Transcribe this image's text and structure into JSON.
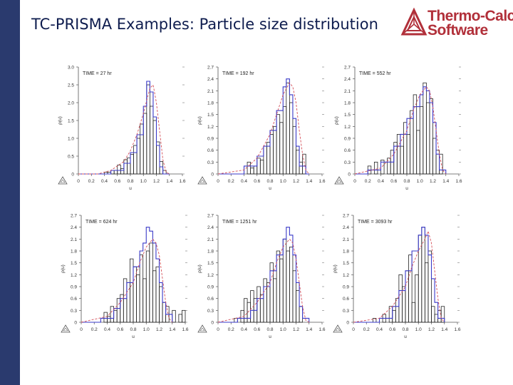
{
  "slide": {
    "title": "TC-PRISMA Examples: Particle size distribution"
  },
  "logo": {
    "line1": "Thermo-Calc",
    "line2": "Software",
    "color": "#b1303a"
  },
  "colors": {
    "sidebar": "#2a3a6e",
    "histogram": "#222222",
    "model_curve": "#3a3ac8",
    "fit_curve": "#d4505a"
  },
  "chart_data": [
    {
      "type": "bar",
      "annotation": "TIME = 27 hr",
      "xlabel": "u",
      "ylabel": "ρ(u)",
      "xlim": [
        0,
        1.6
      ],
      "ylim": [
        0,
        3.0
      ],
      "xticks": [
        "0",
        "0.2",
        "0.4",
        "0.6",
        "0.8",
        "1.0",
        "1.2",
        "1.4",
        "1.6"
      ],
      "yticks": [
        "0",
        "0.5",
        "1.0",
        "1.5",
        "2.0",
        "2.5",
        "3.0"
      ],
      "bin_width": 0.05,
      "bins": [
        [
          0.4,
          0.05
        ],
        [
          0.45,
          0.05
        ],
        [
          0.5,
          0.1
        ],
        [
          0.55,
          0.1
        ],
        [
          0.6,
          0.25
        ],
        [
          0.65,
          0.15
        ],
        [
          0.7,
          0.4
        ],
        [
          0.75,
          0.45
        ],
        [
          0.8,
          0.55
        ],
        [
          0.85,
          0.8
        ],
        [
          0.9,
          1.0
        ],
        [
          0.95,
          1.4
        ],
        [
          1.0,
          1.7
        ],
        [
          1.05,
          2.5
        ],
        [
          1.1,
          1.9
        ],
        [
          1.15,
          1.5
        ],
        [
          1.2,
          0.9
        ],
        [
          1.25,
          0.35
        ],
        [
          1.3,
          0.1
        ]
      ],
      "series": [
        {
          "style": "solid",
          "x": [
            0.0,
            0.3,
            0.5,
            0.7,
            0.8,
            0.9,
            1.0,
            1.05,
            1.1,
            1.15,
            1.2,
            1.25,
            1.3,
            1.4
          ],
          "y": [
            0.0,
            0.0,
            0.1,
            0.3,
            0.6,
            1.1,
            1.9,
            2.6,
            2.3,
            1.6,
            0.8,
            0.2,
            0.0,
            0.0
          ]
        },
        {
          "style": "dashed",
          "x": [
            0.0,
            0.3,
            0.5,
            0.7,
            0.8,
            0.9,
            1.0,
            1.1,
            1.15,
            1.2,
            1.25,
            1.3,
            1.35,
            1.4
          ],
          "y": [
            0.0,
            0.0,
            0.1,
            0.35,
            0.65,
            1.1,
            1.7,
            2.4,
            2.5,
            2.0,
            1.2,
            0.4,
            0.05,
            0.0
          ]
        }
      ]
    },
    {
      "type": "bar",
      "annotation": "TIME = 192 hr",
      "xlabel": "u",
      "ylabel": "ρ(u)",
      "xlim": [
        0,
        1.6
      ],
      "ylim": [
        0,
        2.7
      ],
      "xticks": [
        "0",
        "0.2",
        "0.4",
        "0.6",
        "0.8",
        "1.0",
        "1.2",
        "1.4",
        "1.6"
      ],
      "yticks": [
        "0",
        "0.3",
        "0.6",
        "0.9",
        "1.2",
        "1.5",
        "1.8",
        "2.1",
        "2.4",
        "2.7"
      ],
      "bin_width": 0.05,
      "bins": [
        [
          0.45,
          0.3
        ],
        [
          0.5,
          0.15
        ],
        [
          0.55,
          0.2
        ],
        [
          0.6,
          0.4
        ],
        [
          0.65,
          0.35
        ],
        [
          0.7,
          0.7
        ],
        [
          0.75,
          0.8
        ],
        [
          0.8,
          1.0
        ],
        [
          0.85,
          1.2
        ],
        [
          0.9,
          1.5
        ],
        [
          0.95,
          1.3
        ],
        [
          1.0,
          1.7
        ],
        [
          1.05,
          2.3
        ],
        [
          1.1,
          1.8
        ],
        [
          1.15,
          1.2
        ],
        [
          1.2,
          0.6
        ],
        [
          1.25,
          0.3
        ],
        [
          1.3,
          0.5
        ]
      ],
      "series": [
        {
          "style": "solid",
          "x": [
            0.0,
            0.2,
            0.4,
            0.6,
            0.7,
            0.8,
            0.9,
            1.0,
            1.05,
            1.1,
            1.15,
            1.2,
            1.25,
            1.35,
            1.4
          ],
          "y": [
            0.0,
            0.0,
            0.2,
            0.45,
            0.7,
            1.1,
            1.6,
            2.2,
            2.4,
            2.0,
            1.4,
            0.7,
            0.2,
            0.0,
            0.0
          ]
        },
        {
          "style": "dashed",
          "x": [
            0.0,
            0.4,
            0.6,
            0.8,
            0.9,
            1.0,
            1.1,
            1.15,
            1.2,
            1.25,
            1.3,
            1.35,
            1.4
          ],
          "y": [
            0.0,
            0.1,
            0.4,
            1.0,
            1.5,
            2.0,
            2.3,
            2.2,
            1.8,
            1.1,
            0.5,
            0.1,
            0.0
          ]
        }
      ]
    },
    {
      "type": "bar",
      "annotation": "TIME = 552 hr",
      "xlabel": "u",
      "ylabel": "ρ(u)",
      "xlim": [
        0,
        1.6
      ],
      "ylim": [
        0,
        2.7
      ],
      "xticks": [
        "0",
        "0.2",
        "0.4",
        "0.6",
        "0.8",
        "1.0",
        "1.2",
        "1.4",
        "1.6"
      ],
      "yticks": [
        "0",
        "0.3",
        "0.6",
        "0.9",
        "1.2",
        "1.5",
        "1.8",
        "2.1",
        "2.4",
        "2.7"
      ],
      "bin_width": 0.05,
      "bins": [
        [
          0.2,
          0.2
        ],
        [
          0.3,
          0.3
        ],
        [
          0.4,
          0.35
        ],
        [
          0.5,
          0.4
        ],
        [
          0.55,
          0.6
        ],
        [
          0.6,
          0.8
        ],
        [
          0.65,
          1.0
        ],
        [
          0.7,
          0.7
        ],
        [
          0.75,
          1.3
        ],
        [
          0.8,
          1.0
        ],
        [
          0.85,
          1.6
        ],
        [
          0.9,
          2.0
        ],
        [
          0.95,
          1.1
        ],
        [
          1.0,
          1.7
        ],
        [
          1.05,
          2.3
        ],
        [
          1.1,
          1.8
        ],
        [
          1.15,
          1.9
        ],
        [
          1.2,
          0.9
        ],
        [
          1.25,
          0.6
        ],
        [
          1.3,
          0.5
        ]
      ],
      "series": [
        {
          "style": "solid",
          "x": [
            0.0,
            0.2,
            0.4,
            0.6,
            0.7,
            0.8,
            0.9,
            1.0,
            1.05,
            1.1,
            1.15,
            1.2,
            1.25,
            1.3,
            1.4
          ],
          "y": [
            0.0,
            0.1,
            0.3,
            0.7,
            1.0,
            1.4,
            1.7,
            2.0,
            2.2,
            2.1,
            1.8,
            1.3,
            0.5,
            0.1,
            0.0
          ]
        },
        {
          "style": "dashed",
          "x": [
            0.0,
            0.4,
            0.6,
            0.8,
            0.9,
            1.0,
            1.1,
            1.15,
            1.2,
            1.25,
            1.3,
            1.35,
            1.4
          ],
          "y": [
            0.0,
            0.15,
            0.5,
            1.1,
            1.6,
            2.0,
            2.2,
            2.1,
            1.7,
            1.1,
            0.5,
            0.1,
            0.0
          ]
        }
      ]
    },
    {
      "type": "bar",
      "annotation": "TIME = 624 hr",
      "xlabel": "u",
      "ylabel": "ρ(u)",
      "xlim": [
        0,
        1.6
      ],
      "ylim": [
        0,
        2.7
      ],
      "xticks": [
        "0",
        "0.2",
        "0.4",
        "0.6",
        "0.8",
        "1.0",
        "1.2",
        "1.4",
        "1.6"
      ],
      "yticks": [
        "0",
        "0.3",
        "0.6",
        "0.9",
        "1.2",
        "1.5",
        "1.8",
        "2.1",
        "2.4",
        "2.7"
      ],
      "bin_width": 0.05,
      "bins": [
        [
          0.35,
          0.25
        ],
        [
          0.4,
          0.15
        ],
        [
          0.45,
          0.4
        ],
        [
          0.5,
          0.3
        ],
        [
          0.55,
          0.6
        ],
        [
          0.6,
          0.7
        ],
        [
          0.65,
          1.1
        ],
        [
          0.7,
          1.0
        ],
        [
          0.75,
          1.6
        ],
        [
          0.8,
          1.4
        ],
        [
          0.85,
          1.2
        ],
        [
          0.9,
          1.7
        ],
        [
          0.95,
          1.1
        ],
        [
          1.0,
          1.8
        ],
        [
          1.05,
          2.0
        ],
        [
          1.1,
          1.3
        ],
        [
          1.15,
          1.4
        ],
        [
          1.2,
          0.9
        ],
        [
          1.25,
          0.5
        ],
        [
          1.3,
          0.4
        ],
        [
          1.4,
          0.3
        ],
        [
          1.5,
          0.2
        ],
        [
          1.55,
          0.3
        ]
      ],
      "series": [
        {
          "style": "solid",
          "x": [
            0.0,
            0.3,
            0.5,
            0.6,
            0.7,
            0.8,
            0.9,
            0.95,
            1.0,
            1.05,
            1.1,
            1.15,
            1.2,
            1.25,
            1.3,
            1.4
          ],
          "y": [
            0.0,
            0.1,
            0.35,
            0.6,
            1.0,
            1.4,
            1.8,
            2.0,
            2.4,
            2.3,
            2.0,
            1.6,
            1.0,
            0.5,
            0.2,
            0.0
          ]
        },
        {
          "style": "dashed",
          "x": [
            0.0,
            0.4,
            0.6,
            0.8,
            0.9,
            1.0,
            1.1,
            1.15,
            1.2,
            1.25,
            1.3,
            1.35,
            1.4
          ],
          "y": [
            0.0,
            0.15,
            0.5,
            1.0,
            1.5,
            1.9,
            2.1,
            2.0,
            1.7,
            1.1,
            0.5,
            0.1,
            0.0
          ]
        }
      ]
    },
    {
      "type": "bar",
      "annotation": "TIME = 1251 hr",
      "xlabel": "u",
      "ylabel": "ρ(u)",
      "xlim": [
        0,
        1.6
      ],
      "ylim": [
        0,
        2.7
      ],
      "xticks": [
        "0",
        "0.2",
        "0.4",
        "0.6",
        "0.8",
        "1.0",
        "1.2",
        "1.4",
        "1.6"
      ],
      "yticks": [
        "0",
        "0.3",
        "0.6",
        "0.9",
        "1.2",
        "1.5",
        "1.8",
        "2.1",
        "2.4",
        "2.7"
      ],
      "bin_width": 0.05,
      "bins": [
        [
          0.25,
          0.1
        ],
        [
          0.35,
          0.3
        ],
        [
          0.4,
          0.6
        ],
        [
          0.45,
          0.5
        ],
        [
          0.5,
          0.8
        ],
        [
          0.55,
          0.6
        ],
        [
          0.6,
          0.9
        ],
        [
          0.65,
          0.7
        ],
        [
          0.7,
          1.1
        ],
        [
          0.75,
          1.0
        ],
        [
          0.8,
          1.5
        ],
        [
          0.85,
          1.1
        ],
        [
          0.9,
          1.8
        ],
        [
          0.95,
          1.6
        ],
        [
          1.0,
          2.1
        ],
        [
          1.05,
          1.8
        ],
        [
          1.1,
          1.9
        ],
        [
          1.15,
          1.3
        ],
        [
          1.2,
          0.8
        ],
        [
          1.25,
          0.4
        ]
      ],
      "series": [
        {
          "style": "solid",
          "x": [
            0.0,
            0.3,
            0.5,
            0.6,
            0.7,
            0.8,
            0.9,
            1.0,
            1.05,
            1.1,
            1.15,
            1.2,
            1.25,
            1.3,
            1.4
          ],
          "y": [
            0.0,
            0.1,
            0.3,
            0.6,
            0.9,
            1.3,
            1.7,
            2.1,
            2.4,
            2.2,
            1.7,
            1.0,
            0.4,
            0.1,
            0.0
          ]
        },
        {
          "style": "dashed",
          "x": [
            0.0,
            0.4,
            0.6,
            0.8,
            0.9,
            1.0,
            1.1,
            1.15,
            1.2,
            1.25,
            1.3,
            1.35,
            1.4
          ],
          "y": [
            0.0,
            0.15,
            0.5,
            1.0,
            1.5,
            1.9,
            2.1,
            2.0,
            1.6,
            1.0,
            0.4,
            0.05,
            0.0
          ]
        }
      ]
    },
    {
      "type": "bar",
      "annotation": "TIME = 3093 hr",
      "xlabel": "u",
      "ylabel": "ρ(u)",
      "xlim": [
        0,
        1.6
      ],
      "ylim": [
        0,
        2.7
      ],
      "xticks": [
        "0",
        "0.2",
        "0.4",
        "0.6",
        "0.8",
        "1.0",
        "1.2",
        "1.4",
        "1.6"
      ],
      "yticks": [
        "0",
        "0.3",
        "0.6",
        "0.9",
        "1.2",
        "1.5",
        "1.8",
        "2.1",
        "2.4",
        "2.7"
      ],
      "bin_width": 0.05,
      "bins": [
        [
          0.3,
          0.1
        ],
        [
          0.45,
          0.2
        ],
        [
          0.55,
          0.4
        ],
        [
          0.6,
          0.3
        ],
        [
          0.65,
          0.6
        ],
        [
          0.7,
          1.2
        ],
        [
          0.75,
          0.9
        ],
        [
          0.8,
          1.3
        ],
        [
          0.85,
          1.7
        ],
        [
          0.9,
          0.5
        ],
        [
          0.95,
          1.2
        ],
        [
          1.0,
          2.2
        ],
        [
          1.05,
          2.4
        ],
        [
          1.1,
          1.5
        ],
        [
          1.15,
          1.8
        ],
        [
          1.2,
          0.4
        ],
        [
          1.25,
          0.2
        ],
        [
          1.3,
          0.3
        ],
        [
          1.35,
          0.4
        ]
      ],
      "series": [
        {
          "style": "solid",
          "x": [
            0.0,
            0.4,
            0.6,
            0.7,
            0.8,
            0.9,
            1.0,
            1.05,
            1.1,
            1.15,
            1.2,
            1.25,
            1.3,
            1.4
          ],
          "y": [
            0.0,
            0.1,
            0.4,
            0.8,
            1.3,
            1.8,
            2.2,
            2.4,
            2.2,
            1.7,
            1.1,
            0.5,
            0.1,
            0.0
          ]
        },
        {
          "style": "dashed",
          "x": [
            0.0,
            0.4,
            0.6,
            0.8,
            0.9,
            1.0,
            1.1,
            1.15,
            1.2,
            1.25,
            1.3,
            1.35,
            1.4
          ],
          "y": [
            0.0,
            0.1,
            0.4,
            0.9,
            1.4,
            1.8,
            2.1,
            2.3,
            2.0,
            1.3,
            0.6,
            0.1,
            0.0
          ]
        }
      ]
    }
  ]
}
